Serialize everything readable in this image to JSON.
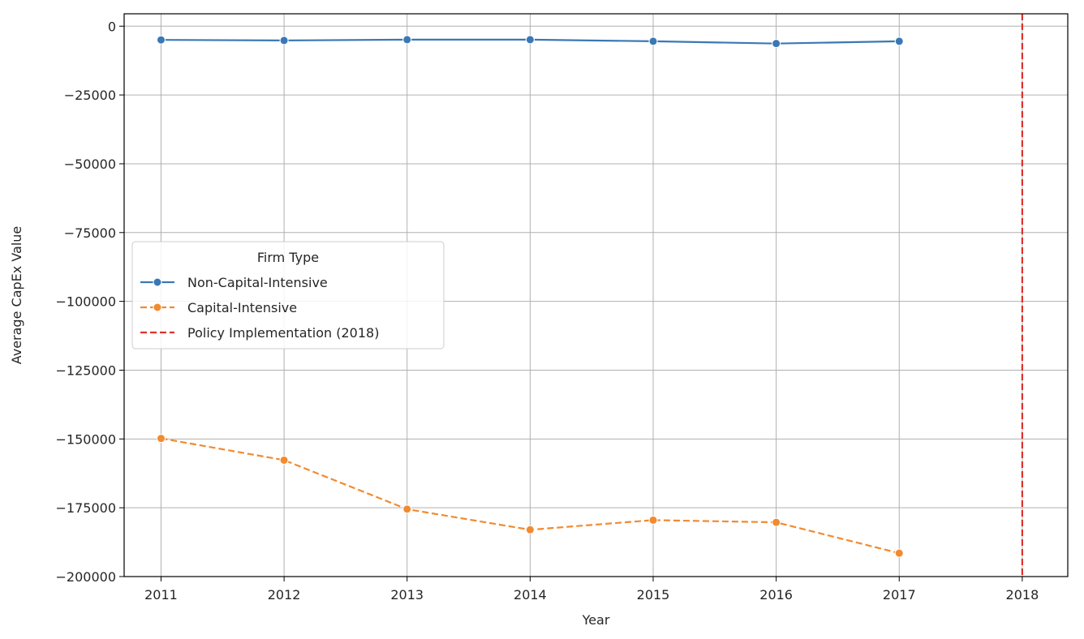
{
  "chart_data": {
    "type": "line",
    "xlabel": "Year",
    "ylabel": "Average CapEx Value",
    "x_ticks": [
      2011,
      2012,
      2013,
      2014,
      2015,
      2016,
      2017,
      2018
    ],
    "xlim": [
      2010.7,
      2018.37
    ],
    "ylim": [
      -200000,
      4500
    ],
    "y_ticks": [
      0,
      -25000,
      -50000,
      -75000,
      -100000,
      -125000,
      -150000,
      -175000,
      -200000
    ],
    "y_tick_labels": [
      "0",
      "−25000",
      "−50000",
      "−75000",
      "−100000",
      "−125000",
      "−150000",
      "−175000",
      "−200000"
    ],
    "grid": true,
    "legend": {
      "title": "Firm Type",
      "placement": "center-left"
    },
    "series": [
      {
        "name": "Non-Capital-Intensive",
        "color": "#3a78b5",
        "style": "solid",
        "marker": "circle",
        "x": [
          2011,
          2012,
          2013,
          2014,
          2015,
          2016,
          2017
        ],
        "values": [
          -5000,
          -5200,
          -4900,
          -4900,
          -5500,
          -6300,
          -5500
        ]
      },
      {
        "name": "Capital-Intensive",
        "color": "#f28a30",
        "style": "dashed",
        "marker": "circle",
        "x": [
          2011,
          2012,
          2013,
          2014,
          2015,
          2016,
          2017
        ],
        "values": [
          -149800,
          -157700,
          -175500,
          -183000,
          -179500,
          -180300,
          -191500
        ]
      }
    ],
    "vline": {
      "name": "Policy Implementation (2018)",
      "x": 2018,
      "color": "#e0312b",
      "style": "dashed"
    }
  }
}
